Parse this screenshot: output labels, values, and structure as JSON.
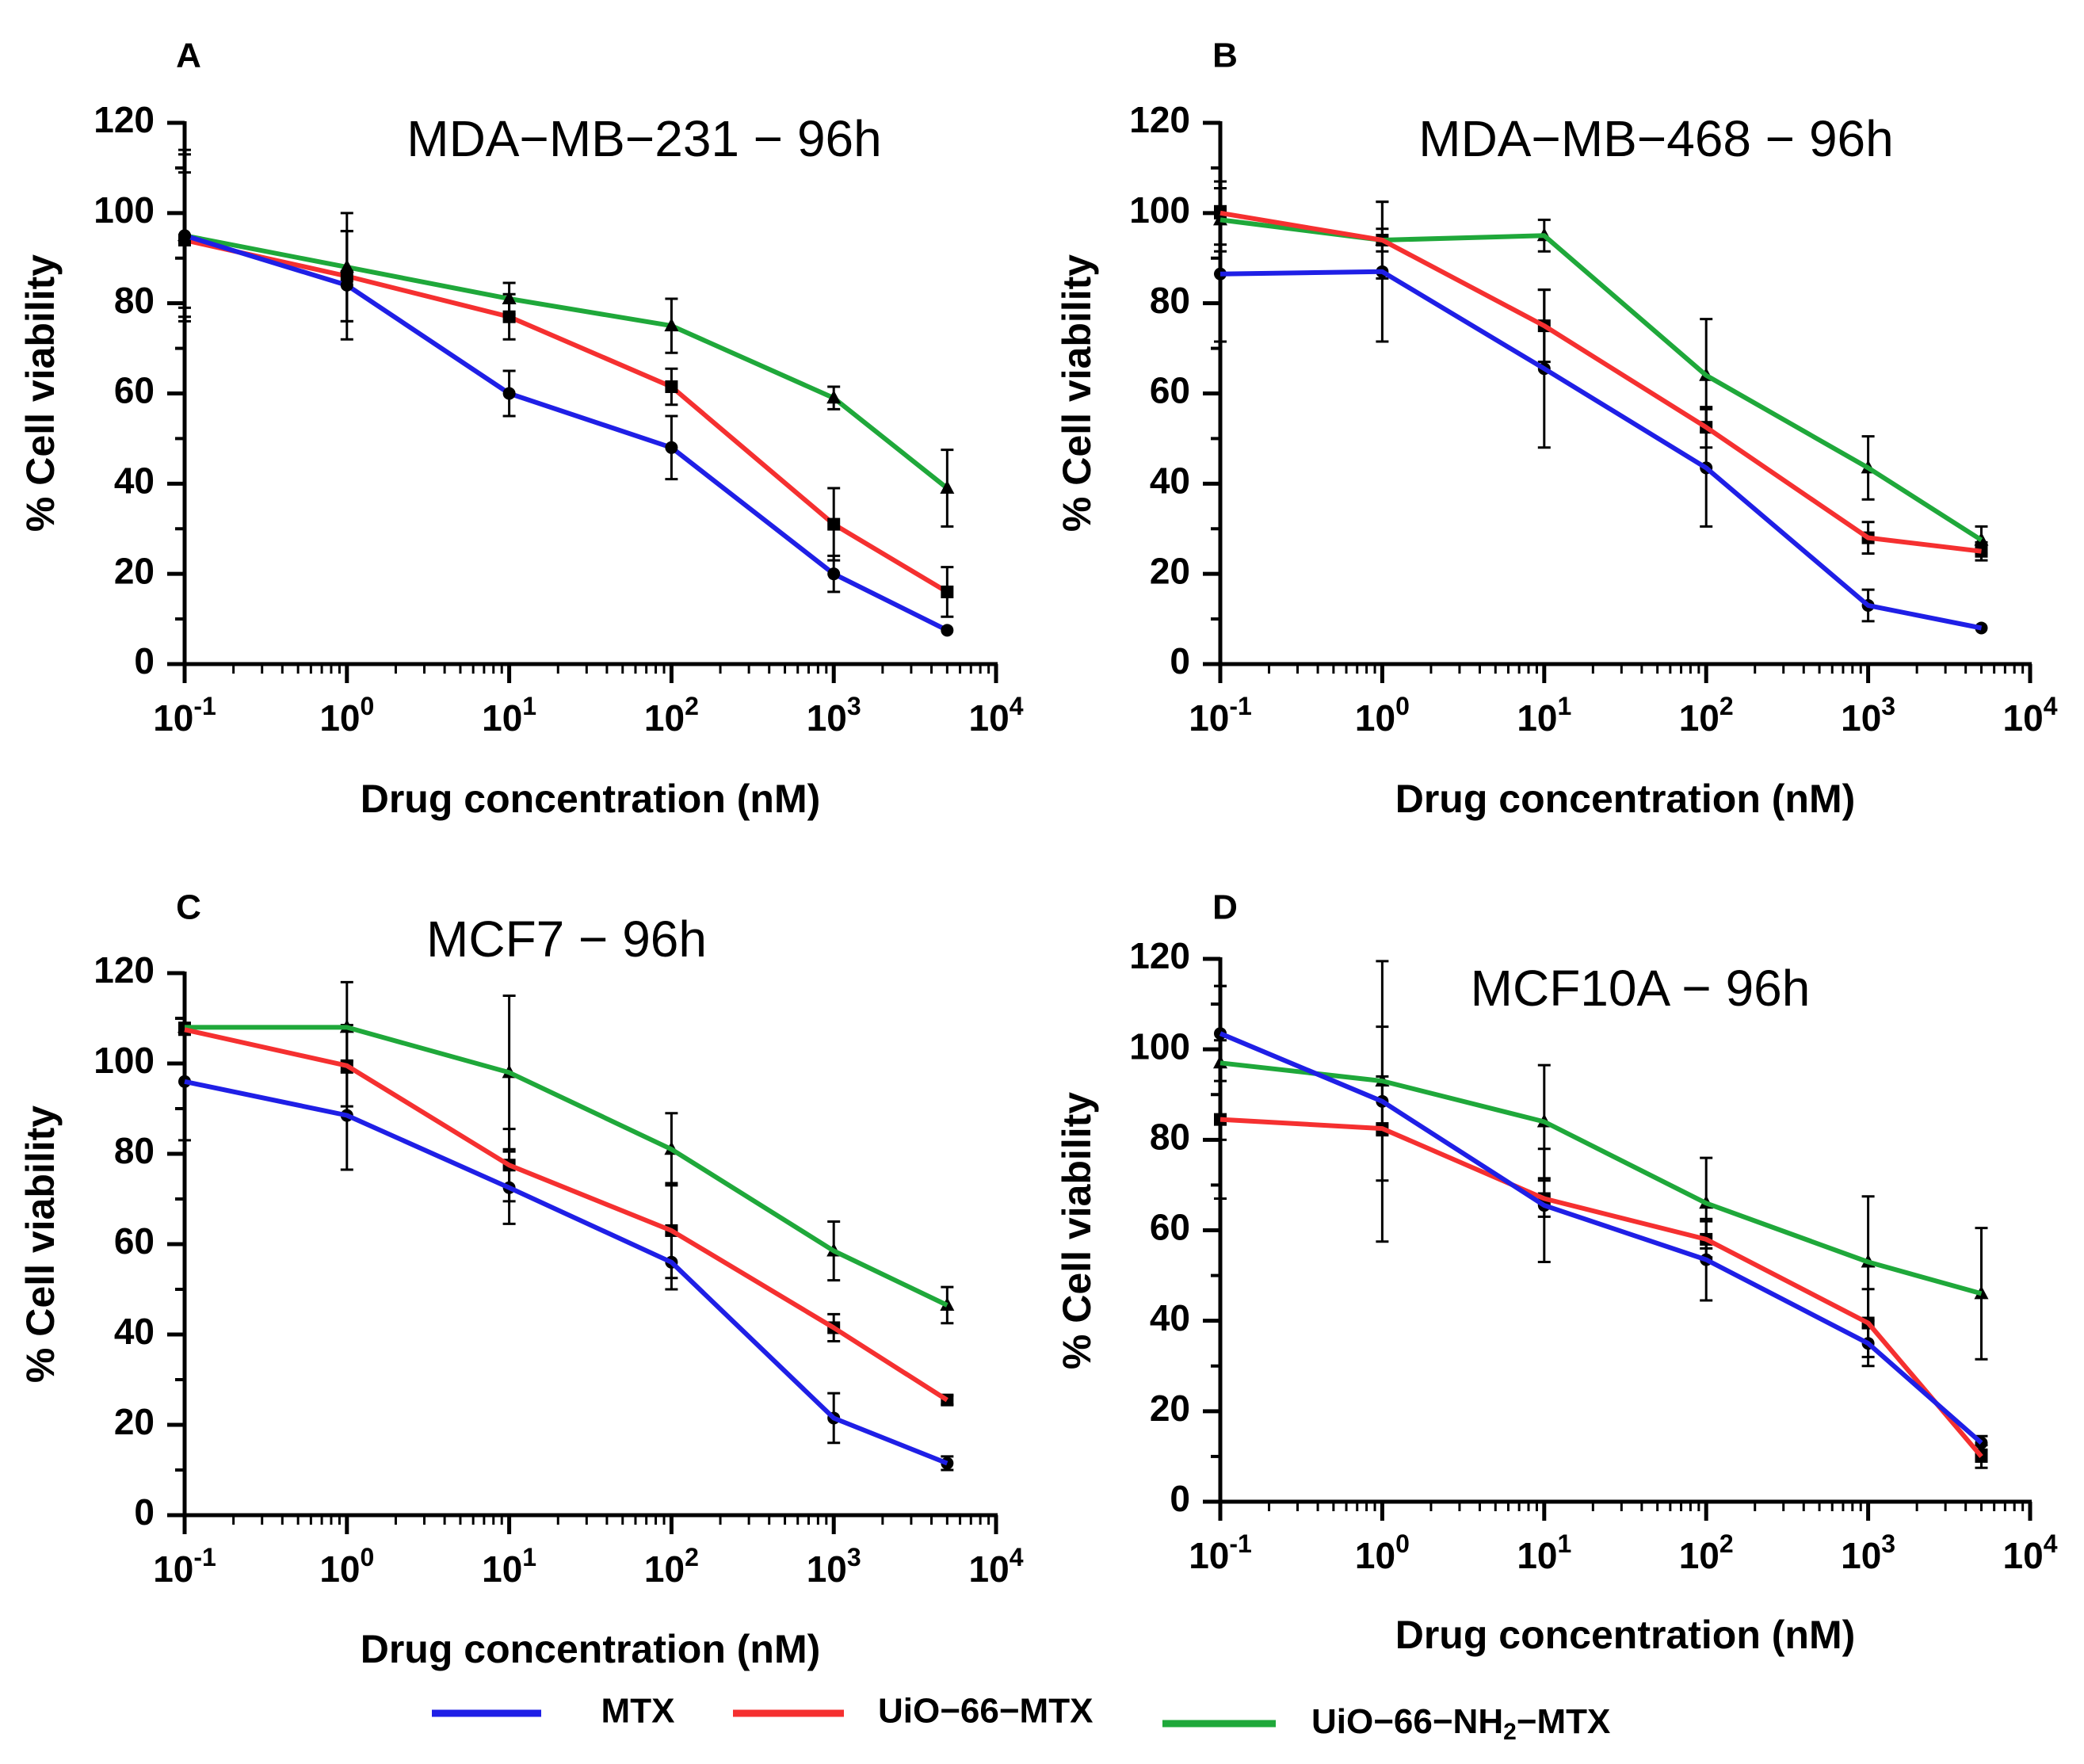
{
  "colors": {
    "mtx": "#1f1fe6",
    "uio": "#f53030",
    "uionh2": "#1fa83a",
    "axis": "#000000"
  },
  "legend": {
    "items": [
      {
        "key": "mtx",
        "label": "MTX"
      },
      {
        "key": "uio",
        "label": "UiO−66−MTX"
      },
      {
        "key": "uionh2",
        "label_prefix": "UiO−66−NH",
        "label_sub": "2",
        "label_suffix": "−MTX"
      }
    ]
  },
  "chart_data": [
    {
      "panel": "A",
      "type": "line",
      "title": "MDA−MB−231 − 96h",
      "xlabel": "Drug concentration (nM)",
      "ylabel": "% Cell viability",
      "xscale": "log",
      "xlim": [
        0.1,
        10000
      ],
      "ylim": [
        0,
        120
      ],
      "yticks": [
        0,
        20,
        40,
        60,
        80,
        100,
        120
      ],
      "xticks": [
        {
          "value": 0.1,
          "base": "10",
          "exp": "-1"
        },
        {
          "value": 1,
          "base": "10",
          "exp": "0"
        },
        {
          "value": 10,
          "base": "10",
          "exp": "1"
        },
        {
          "value": 100,
          "base": "10",
          "exp": "2"
        },
        {
          "value": 1000,
          "base": "10",
          "exp": "3"
        },
        {
          "value": 10000,
          "base": "10",
          "exp": "4"
        }
      ],
      "x": [
        0.1,
        1,
        10,
        100,
        1000,
        5000
      ],
      "series": [
        {
          "key": "mtx",
          "name": "MTX",
          "marker": "circle",
          "values": [
            95,
            84,
            60,
            48,
            20,
            7.5
          ],
          "errors": [
            19,
            12,
            5,
            7,
            4,
            0
          ]
        },
        {
          "key": "uio",
          "name": "UiO−66−MTX",
          "marker": "square",
          "values": [
            94,
            86,
            77,
            61.5,
            31,
            16
          ],
          "errors": [
            15,
            10,
            5,
            4,
            8,
            5.5
          ]
        },
        {
          "key": "uionh2",
          "name": "UiO−66−NH2−MTX",
          "marker": "triangle",
          "values": [
            95,
            88,
            81,
            75,
            59,
            39
          ],
          "errors": [
            18,
            12,
            3.5,
            6,
            2.5,
            8.5
          ]
        }
      ]
    },
    {
      "panel": "B",
      "type": "line",
      "title": "MDA−MB−468 − 96h",
      "xlabel": "Drug concentration (nM)",
      "ylabel": "% Cell viability",
      "xscale": "log",
      "xlim": [
        0.1,
        10000
      ],
      "ylim": [
        0,
        120
      ],
      "yticks": [
        0,
        20,
        40,
        60,
        80,
        100,
        120
      ],
      "xticks": [
        {
          "value": 0.1,
          "base": "10",
          "exp": "-1"
        },
        {
          "value": 1,
          "base": "10",
          "exp": "0"
        },
        {
          "value": 10,
          "base": "10",
          "exp": "1"
        },
        {
          "value": 100,
          "base": "10",
          "exp": "2"
        },
        {
          "value": 1000,
          "base": "10",
          "exp": "3"
        },
        {
          "value": 10000,
          "base": "10",
          "exp": "4"
        }
      ],
      "x": [
        0.1,
        1,
        10,
        100,
        1000,
        5000
      ],
      "series": [
        {
          "key": "mtx",
          "name": "MTX",
          "marker": "circle",
          "values": [
            86.5,
            87,
            65.5,
            43.5,
            13,
            8
          ],
          "errors": [
            15,
            15.5,
            17.5,
            13,
            3.5,
            0
          ]
        },
        {
          "key": "uio",
          "name": "UiO−66−MTX",
          "marker": "square",
          "values": [
            100,
            94,
            75,
            52.5,
            28,
            25
          ],
          "errors": [
            7,
            8.5,
            8,
            4.5,
            3.5,
            2
          ]
        },
        {
          "key": "uionh2",
          "name": "UiO−66−NH2−MTX",
          "marker": "triangle",
          "values": [
            98.5,
            94,
            95,
            64,
            43.5,
            27.5
          ],
          "errors": [
            7,
            2.5,
            3.5,
            12.5,
            7,
            3
          ]
        }
      ]
    },
    {
      "panel": "C",
      "type": "line",
      "title": "MCF7 − 96h",
      "xlabel": "Drug concentration (nM)",
      "ylabel": "% Cell viability",
      "xscale": "log",
      "xlim": [
        0.1,
        10000
      ],
      "ylim": [
        0,
        120
      ],
      "yticks": [
        0,
        20,
        40,
        60,
        80,
        100,
        120
      ],
      "xticks": [
        {
          "value": 0.1,
          "base": "10",
          "exp": "-1"
        },
        {
          "value": 1,
          "base": "10",
          "exp": "0"
        },
        {
          "value": 10,
          "base": "10",
          "exp": "1"
        },
        {
          "value": 100,
          "base": "10",
          "exp": "2"
        },
        {
          "value": 1000,
          "base": "10",
          "exp": "3"
        },
        {
          "value": 10000,
          "base": "10",
          "exp": "4"
        }
      ],
      "x": [
        0.1,
        1,
        10,
        100,
        1000,
        5000
      ],
      "series": [
        {
          "key": "mtx",
          "name": "MTX",
          "marker": "circle",
          "values": [
            96,
            88.5,
            72.5,
            56,
            21.5,
            11.5
          ],
          "errors": [
            13,
            12,
            8,
            6,
            5.5,
            1.5
          ]
        },
        {
          "key": "uio",
          "name": "UiO−66−MTX",
          "marker": "square",
          "values": [
            107.5,
            99.5,
            77.5,
            63,
            41.5,
            25.5
          ],
          "errors": [
            1,
            9,
            8,
            10.5,
            3,
            1
          ]
        },
        {
          "key": "uionh2",
          "name": "UiO−66−NH2−MTX",
          "marker": "triangle",
          "values": [
            108,
            108,
            98,
            81,
            58.5,
            46.5
          ],
          "errors": [
            0,
            10,
            17,
            8,
            6.5,
            4
          ]
        }
      ]
    },
    {
      "panel": "D",
      "type": "line",
      "title": "MCF10A − 96h",
      "xlabel": "Drug concentration (nM)",
      "ylabel": "% Cell viability",
      "xscale": "log",
      "xlim": [
        0.1,
        10000
      ],
      "ylim": [
        0,
        120
      ],
      "yticks": [
        0,
        20,
        40,
        60,
        80,
        100,
        120
      ],
      "xticks": [
        {
          "value": 0.1,
          "base": "10",
          "exp": "-1"
        },
        {
          "value": 1,
          "base": "10",
          "exp": "0"
        },
        {
          "value": 10,
          "base": "10",
          "exp": "1"
        },
        {
          "value": 100,
          "base": "10",
          "exp": "2"
        },
        {
          "value": 1000,
          "base": "10",
          "exp": "3"
        },
        {
          "value": 10000,
          "base": "10",
          "exp": "4"
        }
      ],
      "x": [
        0.1,
        1,
        10,
        100,
        1000,
        5000
      ],
      "series": [
        {
          "key": "mtx",
          "name": "MTX",
          "marker": "circle",
          "values": [
            103.5,
            88.5,
            65.5,
            53.5,
            35,
            13
          ],
          "errors": [
            10.5,
            31,
            12.5,
            9,
            5,
            1.5
          ]
        },
        {
          "key": "uio",
          "name": "UiO−66−MTX",
          "marker": "square",
          "values": [
            84.5,
            82.5,
            67,
            58,
            39.5,
            10
          ],
          "errors": [
            17.5,
            11.5,
            4,
            4,
            7.5,
            2.5
          ]
        },
        {
          "key": "uionh2",
          "name": "UiO−66−NH2−MTX",
          "marker": "triangle",
          "values": [
            97,
            93,
            84,
            66,
            53,
            46
          ],
          "errors": [
            17,
            12,
            12.5,
            10,
            14.5,
            14.5
          ]
        }
      ]
    }
  ]
}
